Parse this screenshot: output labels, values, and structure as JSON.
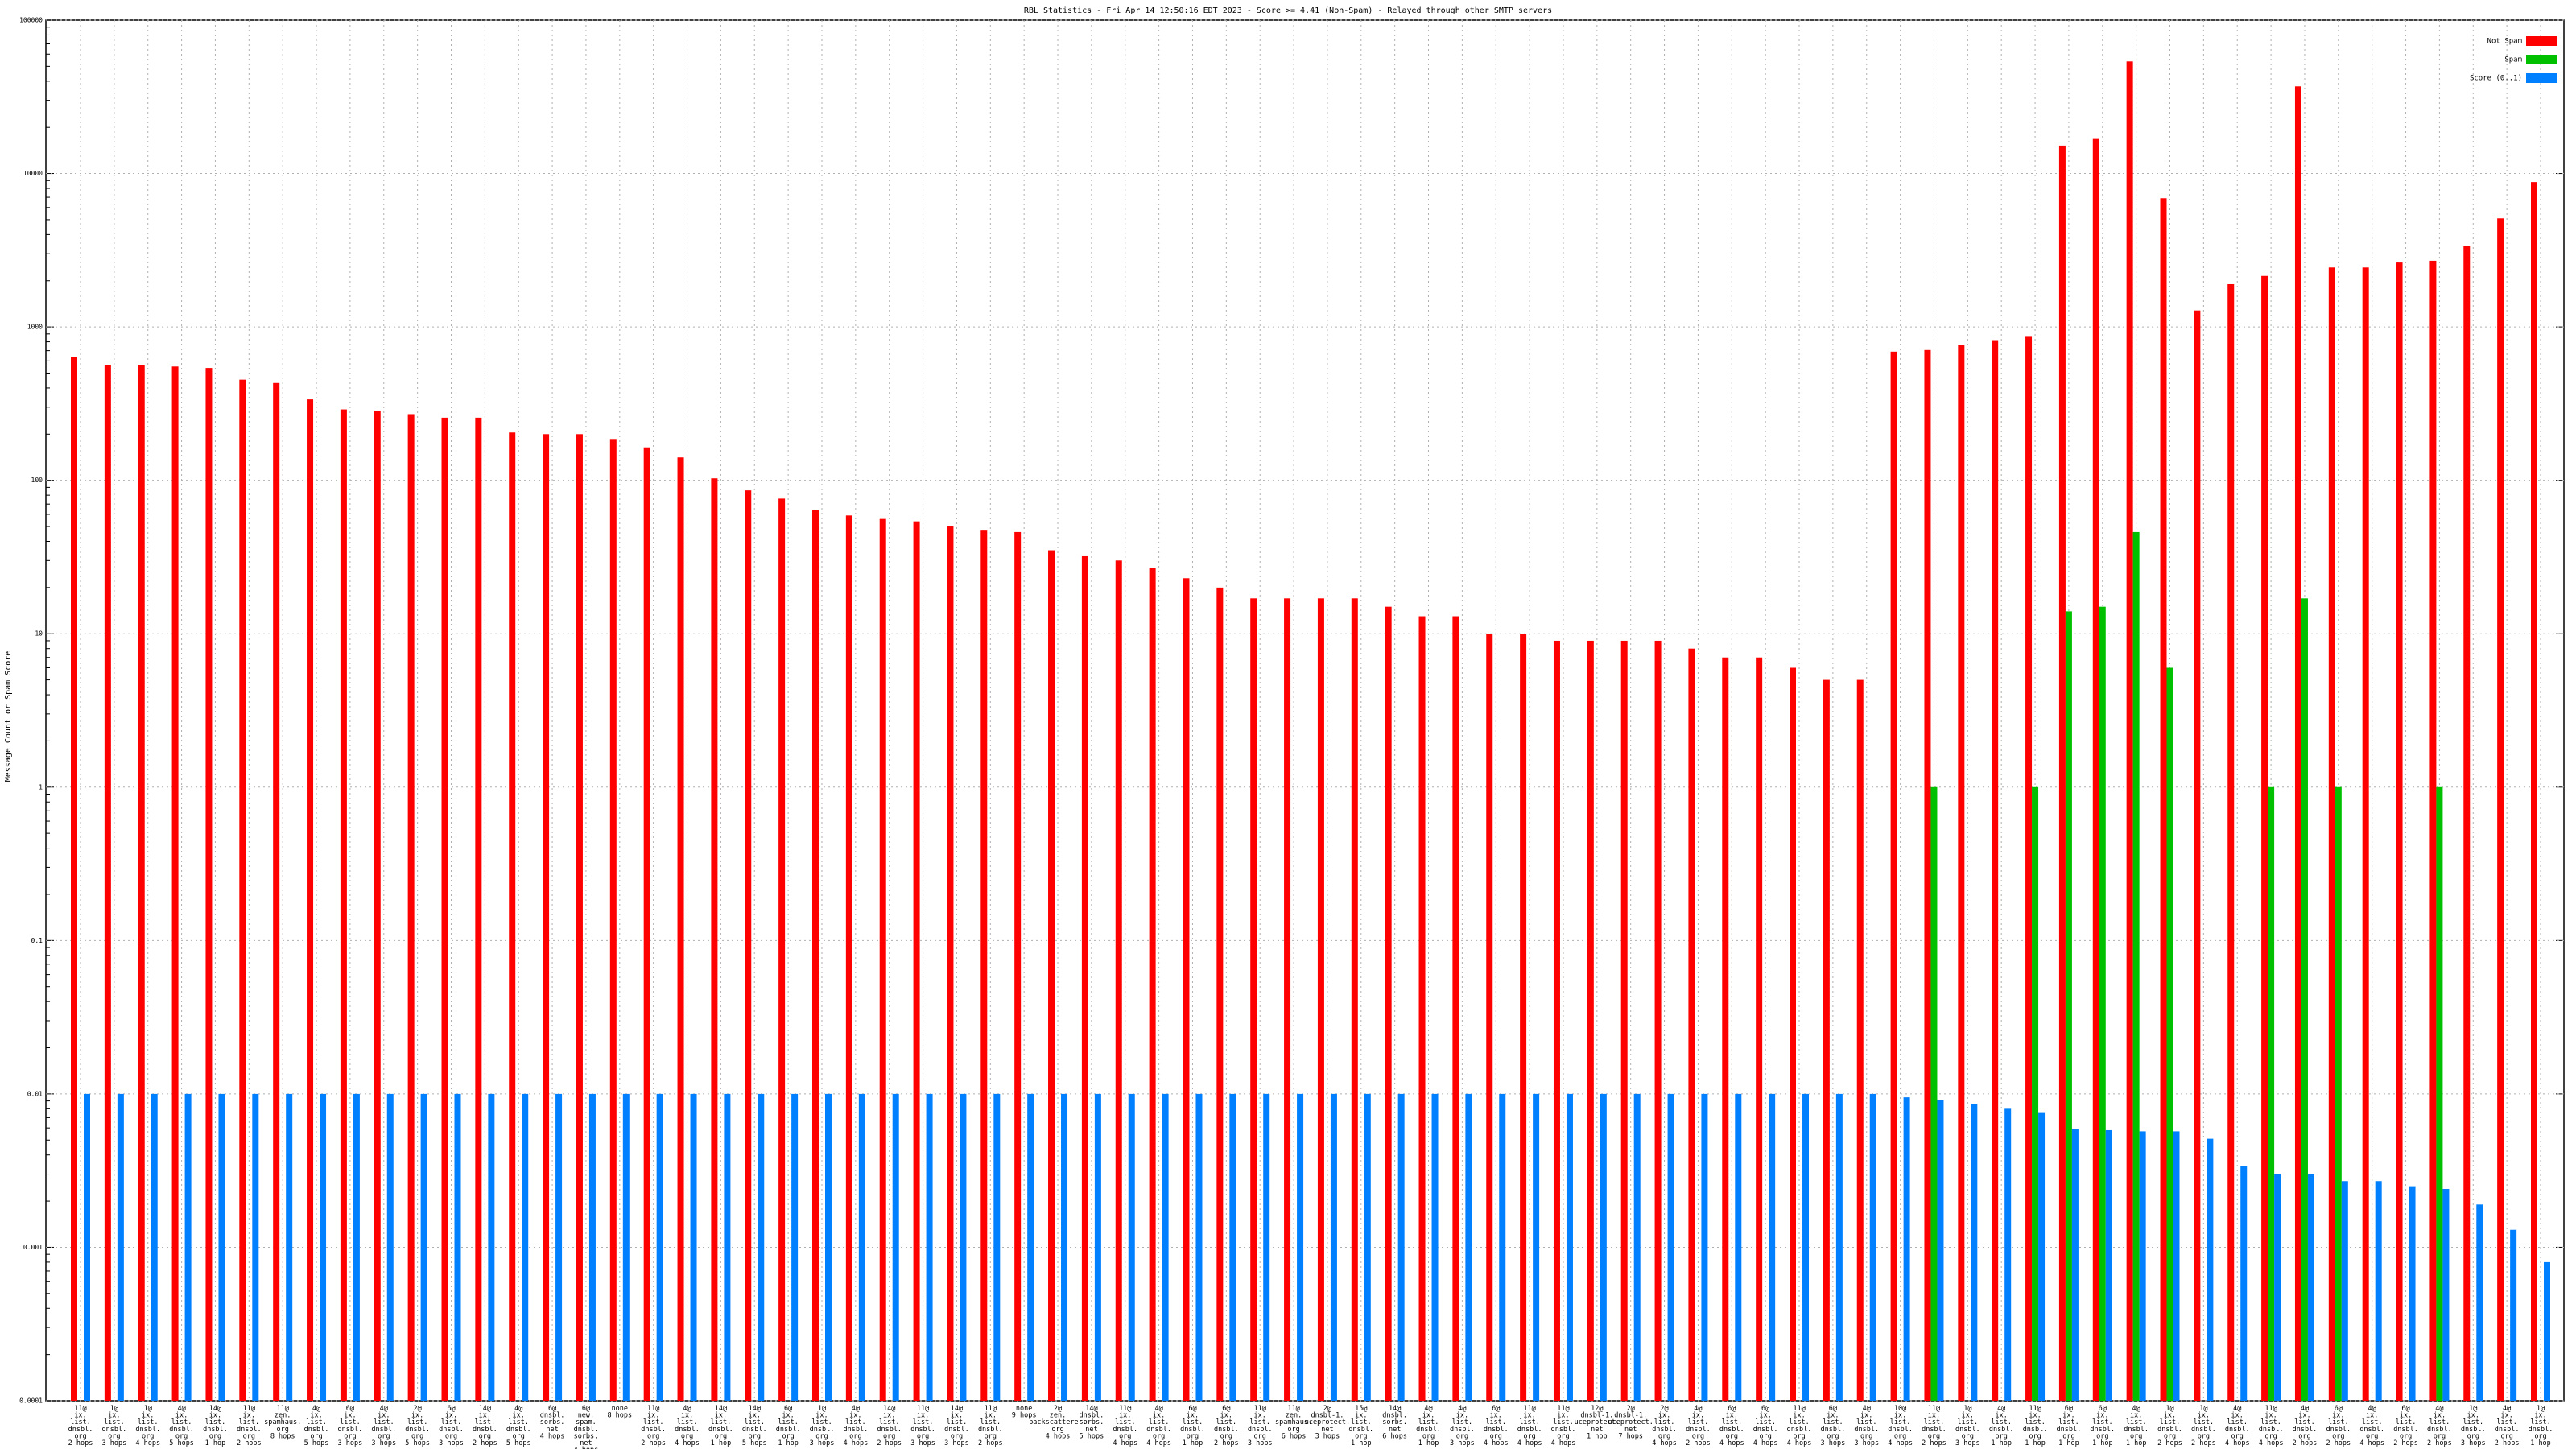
{
  "chart_data": {
    "type": "bar",
    "title": "RBL Statistics - Fri Apr 14 12:50:16 EDT 2023 - Score >= 4.41 (Non-Spam) - Relayed through other SMTP servers",
    "y_label": "Message Count or Spam Score",
    "log_scale": true,
    "grid": true,
    "legend": "upper right",
    "ylim": [
      0.0001,
      100000
    ],
    "yticks": [
      0.0001,
      0.001,
      0.01,
      0.1,
      1,
      10,
      100,
      1000,
      10000,
      100000
    ],
    "categories": [
      "11@\nix.\nlist.\ndnsbl.\norg\n2 hops",
      "1@\nix.\nlist.\ndnsbl.\norg\n3 hops",
      "1@\nix.\nlist.\ndnsbl.\norg\n4 hops",
      "4@\nix.\nlist.\ndnsbl.\norg\n5 hops",
      "14@\nix.\nlist.\ndnsbl.\norg\n1 hop",
      "11@\nix.\nlist.\ndnsbl.\norg\n2 hops",
      "11@\nzen.\nspamhaus.\norg\n8 hops",
      "4@\nix.\nlist.\ndnsbl.\norg\n5 hops",
      "6@\nix.\nlist.\ndnsbl.\norg\n3 hops",
      "4@\nix.\nlist.\ndnsbl.\norg\n3 hops",
      "2@\nix.\nlist.\ndnsbl.\norg\n5 hops",
      "6@\nix.\nlist.\ndnsbl.\norg\n3 hops",
      "14@\nix.\nlist.\ndnsbl.\norg\n2 hops",
      "4@\nix.\nlist.\ndnsbl.\norg\n5 hops",
      "6@\ndnsbl.\nsorbs.\nnet\n4 hops",
      "6@\nnew.\nspam.\ndnsbl.\nsorbs.\nnet\n4 hops",
      "none\n8 hops",
      "11@\nix.\nlist.\ndnsbl.\norg\n2 hops",
      "4@\nix.\nlist.\ndnsbl.\norg\n4 hops",
      "14@\nix.\nlist.\ndnsbl.\norg\n1 hop",
      "14@\nix.\nlist.\ndnsbl.\norg\n5 hops",
      "6@\nix.\nlist.\ndnsbl.\norg\n1 hop",
      "1@\nix.\nlist.\ndnsbl.\norg\n3 hops",
      "4@\nix.\nlist.\ndnsbl.\norg\n4 hops",
      "14@\nix.\nlist.\ndnsbl.\norg\n2 hops",
      "11@\nix.\nlist.\ndnsbl.\norg\n3 hops",
      "14@\nix.\nlist.\ndnsbl.\norg\n3 hops",
      "11@\nix.\nlist.\ndnsbl.\norg\n2 hops",
      "none\n9 hops",
      "2@\nzen.\nbackscatterer.\norg\n4 hops",
      "14@\ndnsbl.\nsorbs.\nnet\n5 hops",
      "11@\nix.\nlist.\ndnsbl.\norg\n4 hops",
      "4@\nix.\nlist.\ndnsbl.\norg\n4 hops",
      "6@\nix.\nlist.\ndnsbl.\norg\n1 hop",
      "6@\nix.\nlist.\ndnsbl.\norg\n2 hops",
      "11@\nix.\nlist.\ndnsbl.\norg\n3 hops",
      "11@\nzen.\nspamhaus.\norg\n6 hops",
      "2@\ndnsbl-1.\nuceprotect.\nnet\n3 hops",
      "15@\nix.\nlist.\ndnsbl.\norg\n1 hop",
      "14@\ndnsbl.\nsorbs.\nnet\n6 hops",
      "4@\nix.\nlist.\ndnsbl.\norg\n1 hop",
      "4@\nix.\nlist.\ndnsbl.\norg\n3 hops",
      "6@\nix.\nlist.\ndnsbl.\norg\n4 hops",
      "11@\nix.\nlist.\ndnsbl.\norg\n4 hops",
      "11@\nix.\nlist.\ndnsbl.\norg\n4 hops",
      "12@\ndnsbl-1.\nuceprotect.\nnet\n1 hop",
      "2@\ndnsbl-1.\nuceprotect.\nnet\n7 hops",
      "2@\nix.\nlist.\ndnsbl.\norg\n4 hops",
      "4@\nix.\nlist.\ndnsbl.\norg\n2 hops",
      "6@\nix.\nlist.\ndnsbl.\norg\n4 hops",
      "6@\nix.\nlist.\ndnsbl.\norg\n4 hops",
      "11@\nix.\nlist.\ndnsbl.\norg\n4 hops",
      "6@\nix.\nlist.\ndnsbl.\norg\n3 hops",
      "4@\nix.\nlist.\ndnsbl.\norg\n3 hops",
      "10@\nix.\nlist.\ndnsbl.\norg\n4 hops",
      "11@\nix.\nlist.\ndnsbl.\norg\n2 hops",
      "1@\nix.\nlist.\ndnsbl.\norg\n3 hops",
      "4@\nix.\nlist.\ndnsbl.\norg\n1 hop",
      "11@\nix.\nlist.\ndnsbl.\norg\n1 hop",
      "6@\nix.\nlist.\ndnsbl.\norg\n1 hop",
      "6@\nix.\nlist.\ndnsbl.\norg\n1 hop",
      "4@\nix.\nlist.\ndnsbl.\norg\n1 hop",
      "1@\nix.\nlist.\ndnsbl.\norg\n2 hops",
      "1@\nix.\nlist.\ndnsbl.\norg\n2 hops",
      "4@\nix.\nlist.\ndnsbl.\norg\n4 hops",
      "11@\nix.\nlist.\ndnsbl.\norg\n4 hops",
      "4@\nix.\nlist.\ndnsbl.\norg\n2 hops",
      "6@\nix.\nlist.\ndnsbl.\norg\n2 hops",
      "4@\nix.\nlist.\ndnsbl.\norg\n4 hops",
      "6@\nix.\nlist.\ndnsbl.\norg\n2 hops",
      "4@\nix.\nlist.\ndnsbl.\norg\n2 hops",
      "1@\nix.\nlist.\ndnsbl.\norg\n3 hops",
      "4@\nix.\nlist.\ndnsbl.\norg\n2 hops",
      "1@\nix.\nlist.\ndnsbl.\norg\n1 hop"
    ],
    "series": [
      {
        "name": "Not Spam",
        "color": "#ff0000",
        "values": [
          640,
          566,
          566,
          552,
          540,
          453,
          431,
          337,
          290,
          284,
          270,
          256,
          256,
          205,
          200,
          200,
          186,
          164,
          141,
          103,
          86,
          76,
          64,
          59,
          56,
          54,
          50,
          47,
          46,
          35,
          32,
          30,
          27,
          23,
          20,
          17,
          17,
          17,
          17,
          15,
          13,
          13,
          10,
          10,
          9,
          9,
          9,
          9,
          8,
          7,
          7,
          6,
          5,
          5,
          690,
          707,
          762,
          820,
          862,
          15200,
          16800,
          53800,
          6900,
          1280,
          1900,
          2150,
          37000,
          2440,
          2440,
          2630,
          2700,
          3360,
          5100,
          8800
        ]
      },
      {
        "name": "Spam",
        "color": "#00c000",
        "values": [
          null,
          null,
          null,
          null,
          null,
          null,
          null,
          null,
          null,
          null,
          null,
          null,
          null,
          null,
          null,
          null,
          null,
          null,
          null,
          null,
          null,
          null,
          null,
          null,
          null,
          null,
          null,
          null,
          null,
          null,
          null,
          null,
          null,
          null,
          null,
          null,
          null,
          null,
          null,
          null,
          null,
          null,
          null,
          null,
          null,
          null,
          null,
          null,
          null,
          null,
          null,
          null,
          null,
          null,
          null,
          1,
          null,
          null,
          1,
          14,
          15,
          46,
          6,
          null,
          null,
          1,
          17,
          1,
          null,
          null,
          1,
          null,
          null,
          null
        ]
      },
      {
        "name": "Score (0..1)",
        "color": "#0080ff",
        "values": [
          0.01,
          0.01,
          0.01,
          0.01,
          0.01,
          0.01,
          0.01,
          0.01,
          0.01,
          0.01,
          0.01,
          0.01,
          0.01,
          0.01,
          0.01,
          0.01,
          0.01,
          0.01,
          0.01,
          0.01,
          0.01,
          0.01,
          0.01,
          0.01,
          0.01,
          0.01,
          0.01,
          0.01,
          0.01,
          0.01,
          0.01,
          0.01,
          0.01,
          0.01,
          0.01,
          0.01,
          0.01,
          0.01,
          0.01,
          0.01,
          0.01,
          0.01,
          0.01,
          0.01,
          0.01,
          0.01,
          0.01,
          0.01,
          0.01,
          0.01,
          0.01,
          0.01,
          0.01,
          0.01,
          0.0095,
          0.0091,
          0.0086,
          0.008,
          0.0076,
          0.0059,
          0.0058,
          0.0057,
          0.0057,
          0.0051,
          0.0034,
          0.003,
          0.003,
          0.0027,
          0.0027,
          0.0025,
          0.0024,
          0.0019,
          0.0013,
          0.0008
        ]
      }
    ]
  }
}
